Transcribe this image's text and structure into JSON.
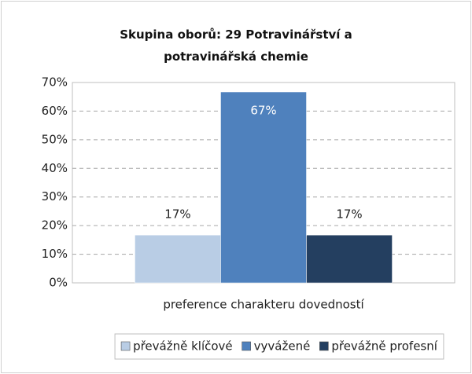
{
  "chart_data": {
    "type": "bar",
    "title": "Skupina oborů: 29 Potravinářství a potravinářská chemie",
    "x_label": "preference charakteru dovedností",
    "categories": [
      null
    ],
    "series": [
      {
        "name": "převážně klíčové",
        "color": "#b9cde5",
        "values": [
          16.7
        ],
        "value_labels": [
          "17%"
        ],
        "label_color": "#222222"
      },
      {
        "name": "vyvážené",
        "color": "#4f81bd",
        "values": [
          66.7
        ],
        "value_labels": [
          "67%"
        ],
        "label_color": "#ffffff"
      },
      {
        "name": "převážně profesní",
        "color": "#243f60",
        "values": [
          16.7
        ],
        "value_labels": [
          "17%"
        ],
        "label_color": "#222222"
      }
    ],
    "ylim": [
      0,
      70
    ],
    "yticks": [
      {
        "value": 0,
        "label": "0%"
      },
      {
        "value": 10,
        "label": "10%"
      },
      {
        "value": 20,
        "label": "20%"
      },
      {
        "value": 30,
        "label": "30%"
      },
      {
        "value": 40,
        "label": "40%"
      },
      {
        "value": 50,
        "label": "50%"
      },
      {
        "value": 60,
        "label": "60%"
      },
      {
        "value": 70,
        "label": "70%"
      }
    ],
    "grid": true,
    "legend": "bottom"
  }
}
